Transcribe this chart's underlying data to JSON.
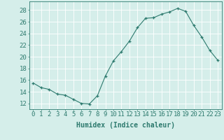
{
  "x": [
    0,
    1,
    2,
    3,
    4,
    5,
    6,
    7,
    8,
    9,
    10,
    11,
    12,
    13,
    14,
    15,
    16,
    17,
    18,
    19,
    20,
    21,
    22,
    23
  ],
  "y": [
    15.5,
    14.7,
    14.4,
    13.6,
    13.4,
    12.7,
    12.0,
    11.9,
    13.3,
    16.7,
    19.3,
    20.9,
    22.7,
    25.0,
    26.6,
    26.7,
    27.3,
    27.7,
    28.3,
    27.8,
    25.4,
    23.4,
    21.1,
    19.4
  ],
  "xlabel": "Humidex (Indice chaleur)",
  "ylabel_ticks": [
    12,
    14,
    16,
    18,
    20,
    22,
    24,
    26,
    28
  ],
  "ylim": [
    11.0,
    29.5
  ],
  "xlim": [
    -0.5,
    23.5
  ],
  "bg_color": "#d5eeea",
  "grid_major_color": "#ffffff",
  "grid_minor_color": "#e8f7f5",
  "line_color": "#2d7a6e",
  "xlabel_fontsize": 7,
  "tick_fontsize": 6.5
}
